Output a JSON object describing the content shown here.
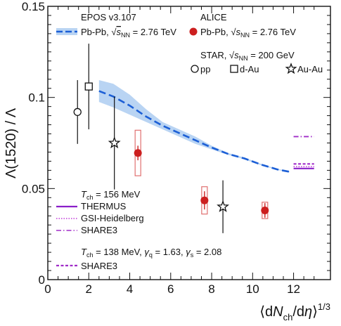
{
  "chart_data": {
    "type": "scatter",
    "xlabel": "⟨dNch/dη⟩1/3",
    "ylabel": "Λ(1520) / Λ",
    "xlim": [
      0,
      13.8
    ],
    "ylim": [
      0,
      0.15
    ],
    "xticks": [
      "0",
      "2",
      "4",
      "6",
      "8",
      "10",
      "12"
    ],
    "yticks": [
      "0",
      "0.05",
      "0.1",
      "0.15"
    ],
    "grid": false,
    "colors": {
      "alice": "#cc1f1f",
      "alice_box": "#e07070",
      "epos_line": "#1c5fd6",
      "epos_band": "#b9d4f3",
      "thermus": "#8a1fc9",
      "gsi": "#c03ad8",
      "share": "#a02cc8",
      "star": "#111111"
    },
    "series": [
      {
        "name": "Pb-Pb, √sNN = 2.76 TeV",
        "group": "ALICE",
        "marker": "filled-circle",
        "points": [
          {
            "x": 4.4,
            "y": 0.0695,
            "stat": 0.004,
            "sys": 0.0125
          },
          {
            "x": 7.65,
            "y": 0.0435,
            "stat": 0.005,
            "sys": 0.0075
          },
          {
            "x": 10.6,
            "y": 0.038,
            "stat": 0.004,
            "sys": 0.0045
          }
        ]
      },
      {
        "name": "pp",
        "group": "STAR, √sNN = 200 GeV",
        "marker": "open-circle",
        "points": [
          {
            "x": 1.45,
            "y": 0.092,
            "err": 0.0175
          }
        ]
      },
      {
        "name": "d-Au",
        "group": "STAR, √sNN = 200 GeV",
        "marker": "open-square",
        "points": [
          {
            "x": 2.0,
            "y": 0.106,
            "err": 0.0235
          }
        ]
      },
      {
        "name": "Au-Au",
        "group": "STAR, √sNN = 200 GeV",
        "marker": "open-star",
        "points": [
          {
            "x": 3.25,
            "y": 0.075,
            "err": 0.0255
          },
          {
            "x": 8.55,
            "y": 0.04,
            "err": 0.0145
          }
        ]
      },
      {
        "name": "Pb-Pb, √sNN = 2.76 TeV",
        "group": "EPOS v3.107",
        "marker": "dashed-line-band",
        "x": [
          2.5,
          3.2,
          4.0,
          4.8,
          5.6,
          6.4,
          7.2,
          8.0,
          8.8,
          9.6,
          10.4,
          11.2,
          11.8
        ],
        "y": [
          0.1035,
          0.1005,
          0.0955,
          0.0895,
          0.0845,
          0.0805,
          0.0765,
          0.0725,
          0.069,
          0.0665,
          0.0632,
          0.0605,
          0.0592
        ],
        "band_low": [
          0.0975,
          0.0945,
          0.0905,
          0.0865,
          0.0825,
          0.0785,
          0.0745,
          0.0715,
          0.0685,
          0.066,
          0.0628,
          0.0602,
          0.059
        ],
        "band_high": [
          0.1095,
          0.1075,
          0.1015,
          0.0935,
          0.0865,
          0.0825,
          0.0785,
          0.0735,
          0.0695,
          0.067,
          0.0636,
          0.0608,
          0.0594
        ]
      }
    ],
    "model_lines": [
      {
        "label": "THERMUS",
        "set": "Tch = 156 MeV",
        "style": "solid",
        "x": [
          12.0,
          13.0
        ],
        "y": 0.061
      },
      {
        "label": "GSI-Heidelberg",
        "set": "Tch = 156 MeV",
        "style": "dotted",
        "x": [
          12.0,
          13.0
        ],
        "y": 0.062
      },
      {
        "label": "SHARE3",
        "set": "Tch = 156 MeV",
        "style": "dashdot",
        "x": [
          12.0,
          13.0
        ],
        "y": 0.0785
      },
      {
        "label": "SHARE3",
        "set": "Tch = 138 MeV, γq = 1.63, γs = 2.08",
        "style": "dashed",
        "x": [
          12.0,
          13.0
        ],
        "y": 0.0635
      }
    ]
  },
  "legend": {
    "epos_title": "EPOS v3.107",
    "epos_sys": "Pb-Pb, ",
    "epos_energy": " = 2.76 TeV",
    "alice_title": "ALICE",
    "alice_sys": "Pb-Pb, ",
    "alice_energy": " = 2.76 TeV",
    "star_title": "STAR, ",
    "star_energy": " = 200 GeV",
    "sqrt": "√",
    "s": "s",
    "nn": "NN",
    "pp": "pp",
    "dau": "d-Au",
    "auau": "Au-Au",
    "tch1_T": "T",
    "tch1_sub": "ch",
    "tch1_rest": " = 156 MeV",
    "thermus": "THERMUS",
    "gsi": "GSI-Heidelberg",
    "share3a": "SHARE3",
    "tch2_T": "T",
    "tch2_sub": "ch",
    "tch2_rest1": " = 138 MeV, ",
    "tch2_gq": "γ",
    "tch2_q": "q",
    "tch2_rest2": " = 1.63, ",
    "tch2_gs": "γ",
    "tch2_s": "s",
    "tch2_rest3": " = 2.08",
    "share3b": "SHARE3"
  },
  "axis": {
    "ylabel": "Λ(1520) / Λ",
    "xlabel_open": "⟨d",
    "xlabel_N": "N",
    "xlabel_ch": "ch",
    "xlabel_mid": "/d",
    "xlabel_eta": "η",
    "xlabel_close": "⟩",
    "xlabel_pow": "1/3"
  }
}
